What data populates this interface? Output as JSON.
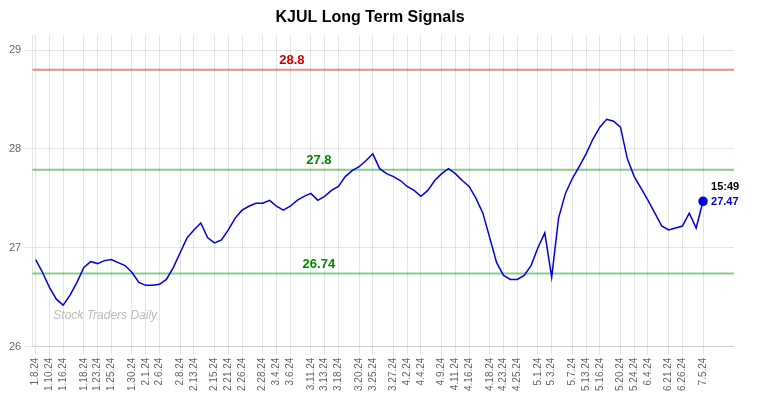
{
  "chart_data": {
    "type": "line",
    "title": "KJUL Long Term Signals",
    "categories": [
      "1.8.24",
      null,
      "1.10.24",
      null,
      "1.16.24",
      null,
      null,
      "1.18.24",
      null,
      "1.23.24",
      null,
      "1.25.24",
      null,
      null,
      "1.30.24",
      null,
      "2.1.24",
      null,
      "2.6.24",
      null,
      null,
      "2.8.24",
      null,
      "2.13.24",
      null,
      null,
      "2.15.24",
      null,
      "2.21.24",
      null,
      "2.26.24",
      null,
      null,
      "2.28.24",
      null,
      "3.4.24",
      null,
      "3.6.24",
      null,
      null,
      "3.11.24",
      null,
      "3.13.24",
      null,
      "3.18.24",
      null,
      null,
      "3.20.24",
      null,
      "3.25.24",
      null,
      null,
      "3.27.24",
      null,
      "4.2.24",
      null,
      "4.4.24",
      null,
      null,
      "4.9.24",
      null,
      "4.11.24",
      null,
      "4.16.24",
      null,
      null,
      "4.18.24",
      null,
      "4.23.24",
      null,
      "4.25.24",
      null,
      null,
      "5.1.24",
      null,
      "5.3.24",
      null,
      null,
      "5.7.24",
      null,
      "5.13.24",
      null,
      "5.16.24",
      null,
      null,
      "5.20.24",
      null,
      "5.24.24",
      null,
      "6.4.24",
      null,
      null,
      "6.21.24",
      null,
      "6.26.24",
      null,
      null,
      "7.5.24"
    ],
    "values": [
      26.88,
      26.75,
      26.6,
      26.48,
      26.42,
      26.52,
      26.65,
      26.8,
      26.86,
      26.84,
      26.87,
      26.88,
      26.85,
      26.82,
      26.75,
      26.65,
      26.62,
      26.62,
      26.63,
      26.68,
      26.8,
      26.95,
      27.1,
      27.18,
      27.25,
      27.1,
      27.05,
      27.08,
      27.18,
      27.3,
      27.38,
      27.42,
      27.45,
      27.45,
      27.48,
      27.42,
      27.38,
      27.42,
      27.48,
      27.52,
      27.55,
      27.48,
      27.52,
      27.58,
      27.62,
      27.72,
      27.78,
      27.82,
      27.88,
      27.95,
      27.8,
      27.75,
      27.72,
      27.68,
      27.62,
      27.58,
      27.52,
      27.58,
      27.68,
      27.75,
      27.8,
      27.75,
      27.68,
      27.62,
      27.5,
      27.35,
      27.1,
      26.85,
      26.72,
      26.68,
      26.68,
      26.72,
      26.82,
      27.0,
      27.15,
      26.7,
      27.3,
      27.55,
      27.7,
      27.82,
      27.95,
      28.1,
      28.22,
      28.3,
      28.28,
      28.22,
      27.9,
      27.72,
      27.6,
      27.48,
      27.35,
      27.22,
      27.18,
      27.2,
      27.22,
      27.35,
      27.2,
      27.47
    ],
    "color": "#0000dd",
    "ylim": [
      26.0,
      29.15
    ],
    "yticks": [
      26,
      27,
      28,
      29
    ],
    "grid": true,
    "reference_lines": [
      {
        "y": 28.8,
        "label": "28.8",
        "color": "#cc0000"
      },
      {
        "y": 27.79,
        "label": "27.8",
        "color": "#008800"
      },
      {
        "y": 26.74,
        "label": "26.74",
        "color": "#008800"
      }
    ],
    "last_point": {
      "time": "15:49",
      "value_label": "27.47"
    },
    "watermark": "Stock Traders Daily"
  }
}
